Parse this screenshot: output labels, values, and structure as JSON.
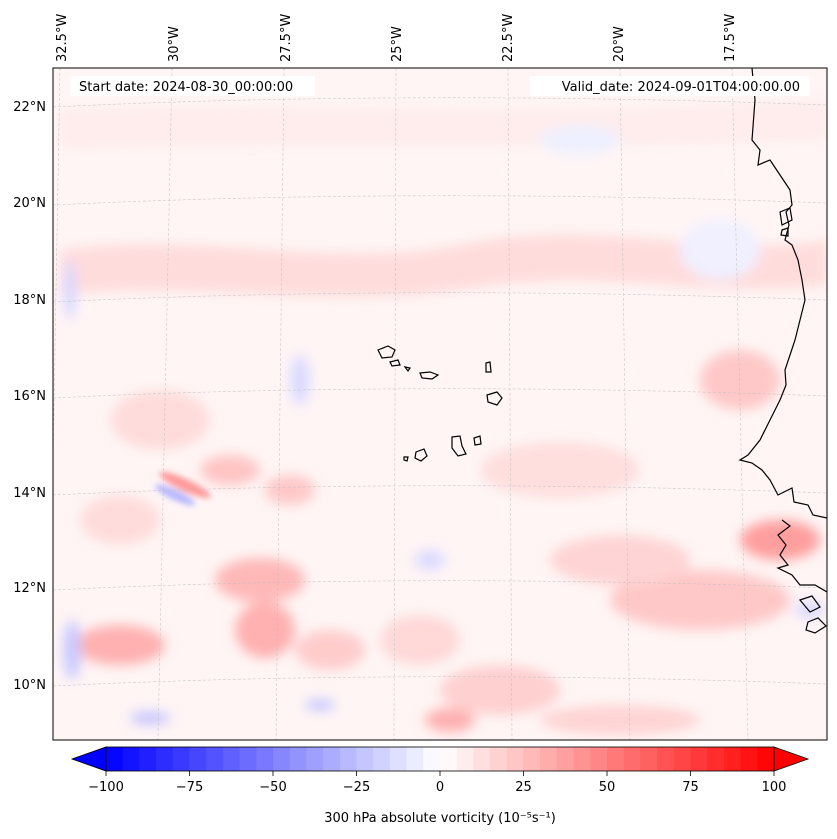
{
  "map": {
    "start_date_label": "Start date: 2024-08-30_00:00:00",
    "valid_date_label": "Valid_date: 2024-09-01T04:00:00.00",
    "longitude_labels": [
      "32.5°W",
      "30°W",
      "27.5°W",
      "25°W",
      "22.5°W",
      "20°W",
      "17.5°W"
    ],
    "latitude_labels": [
      "22°N",
      "20°N",
      "18°N",
      "16°N",
      "14°N",
      "12°N",
      "10°N"
    ],
    "field": "300 hPa absolute vorticity",
    "projection": "lambert-conformal",
    "gridlines": true,
    "features": [
      "coastline-west-africa",
      "cape-verde-islands"
    ]
  },
  "colorbar": {
    "title": "300 hPa absolute vorticity (10⁻⁵s⁻¹)",
    "ticks": [
      "−100",
      "−75",
      "−50",
      "−25",
      "0",
      "25",
      "50",
      "75",
      "100"
    ],
    "tick_values": [
      -100,
      -75,
      -50,
      -25,
      0,
      25,
      50,
      75,
      100
    ],
    "range": [
      -100,
      100
    ],
    "colormap": "bwr",
    "extend": "both",
    "colors": {
      "low": "#0000ff",
      "mid": "#ffffff",
      "high": "#ff0000"
    }
  }
}
